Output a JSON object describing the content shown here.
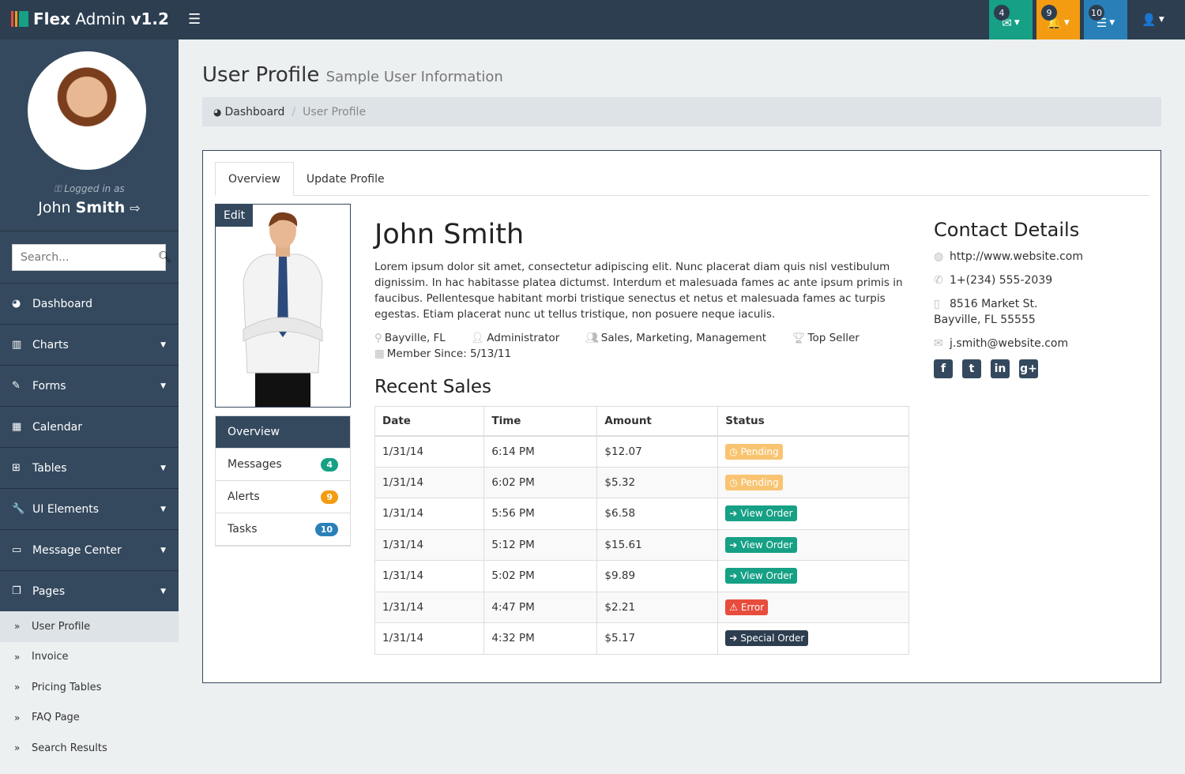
{
  "brand": {
    "name": "Flex",
    "name2": "Admin",
    "version": "v1.2",
    "logo_colors": [
      "#e74c3c",
      "#f39c12",
      "#16a085"
    ]
  },
  "topnav": [
    {
      "icon": "envelope-icon",
      "glyph": "✉",
      "count": "4",
      "color": "#16a085"
    },
    {
      "icon": "bell-icon",
      "glyph": "🔔",
      "count": "9",
      "color": "#f39c12"
    },
    {
      "icon": "tasks-icon",
      "glyph": "☰",
      "count": "10",
      "color": "#2980b9"
    },
    {
      "icon": "user-icon",
      "glyph": "👤",
      "count": "",
      "color": "#2c3e50"
    }
  ],
  "sidebar": {
    "logged_in_label": "Logged in as",
    "first_name": "John",
    "last_name": "Smith",
    "search_placeholder": "Search...",
    "items": [
      {
        "label": "Dashboard",
        "icon": "dashboard-icon",
        "glyph": "◕",
        "dropdown": false
      },
      {
        "label": "Charts",
        "icon": "bar-chart-icon",
        "glyph": "▥",
        "dropdown": true
      },
      {
        "label": "Forms",
        "icon": "edit-icon",
        "glyph": "✎",
        "dropdown": true
      },
      {
        "label": "Calendar",
        "icon": "calendar-icon",
        "glyph": "▦",
        "dropdown": false
      },
      {
        "label": "Tables",
        "icon": "table-icon",
        "glyph": "⊞",
        "dropdown": true
      },
      {
        "label": "UI Elements",
        "icon": "wrench-icon",
        "glyph": "🔧",
        "dropdown": true
      },
      {
        "label": "Message Center",
        "icon": "inbox-icon",
        "glyph": "▭",
        "dropdown": true
      },
      {
        "label": "Pages",
        "icon": "files-icon",
        "glyph": "❐",
        "dropdown": true
      }
    ],
    "subitems": [
      {
        "label": "User Profile",
        "active": true
      },
      {
        "label": "Invoice",
        "active": false
      },
      {
        "label": "Pricing Tables",
        "active": false
      },
      {
        "label": "FAQ Page",
        "active": false
      },
      {
        "label": "Search Results",
        "active": false
      }
    ]
  },
  "page": {
    "title": "User Profile",
    "subtitle": "Sample User Information"
  },
  "breadcrumb": {
    "home": "Dashboard",
    "current": "User Profile"
  },
  "tabs": [
    {
      "label": "Overview",
      "active": true
    },
    {
      "label": "Update Profile",
      "active": false
    }
  ],
  "profile": {
    "edit_label": "Edit",
    "menu": [
      {
        "label": "Overview",
        "badge": "",
        "color": ""
      },
      {
        "label": "Messages",
        "badge": "4",
        "color": "#16a085"
      },
      {
        "label": "Alerts",
        "badge": "9",
        "color": "#f39c12"
      },
      {
        "label": "Tasks",
        "badge": "10",
        "color": "#2980b9"
      }
    ],
    "name": "John Smith",
    "bio": "Lorem ipsum dolor sit amet, consectetur adipiscing elit. Nunc placerat diam quis nisl vestibulum dignissim. In hac habitasse platea dictumst. Interdum et malesuada fames ac ante ipsum primis in faucibus. Pellentesque habitant morbi tristique senectus et netus et malesuada fames ac turpis egestas. Etiam placerat nunc ut tellus tristique, non posuere neque iaculis.",
    "location": "Bayville, FL",
    "role": "Administrator",
    "groups": "Sales, Marketing, Management",
    "award": "Top Seller",
    "member_since": "Member Since: 5/13/11"
  },
  "recent_sales": {
    "title": "Recent Sales",
    "columns": [
      "Date",
      "Time",
      "Amount",
      "Status"
    ],
    "rows": [
      {
        "date": "1/31/14",
        "time": "6:14 PM",
        "amount": "$12.07",
        "status": "Pending",
        "icon": "◷",
        "color": "#f8c471"
      },
      {
        "date": "1/31/14",
        "time": "6:02 PM",
        "amount": "$5.32",
        "status": "Pending",
        "icon": "◷",
        "color": "#f8c471"
      },
      {
        "date": "1/31/14",
        "time": "5:56 PM",
        "amount": "$6.58",
        "status": "View Order",
        "icon": "➔",
        "color": "#16a085"
      },
      {
        "date": "1/31/14",
        "time": "5:12 PM",
        "amount": "$15.61",
        "status": "View Order",
        "icon": "➔",
        "color": "#16a085"
      },
      {
        "date": "1/31/14",
        "time": "5:02 PM",
        "amount": "$9.89",
        "status": "View Order",
        "icon": "➔",
        "color": "#16a085"
      },
      {
        "date": "1/31/14",
        "time": "4:47 PM",
        "amount": "$2.21",
        "status": "Error",
        "icon": "⚠",
        "color": "#e74c3c"
      },
      {
        "date": "1/31/14",
        "time": "4:32 PM",
        "amount": "$5.17",
        "status": "Special Order",
        "icon": "➔",
        "color": "#2c3e50"
      }
    ]
  },
  "contact": {
    "title": "Contact Details",
    "website": "http://www.website.com",
    "phone": "1+(234) 555-2039",
    "address1": "8516 Market St.",
    "address2": "Bayville, FL 55555",
    "email": "j.smith@website.com",
    "social": [
      {
        "icon": "facebook-icon",
        "glyph": "f"
      },
      {
        "icon": "twitter-icon",
        "glyph": "t"
      },
      {
        "icon": "linkedin-icon",
        "glyph": "in"
      },
      {
        "icon": "google-plus-icon",
        "glyph": "g+"
      }
    ]
  }
}
